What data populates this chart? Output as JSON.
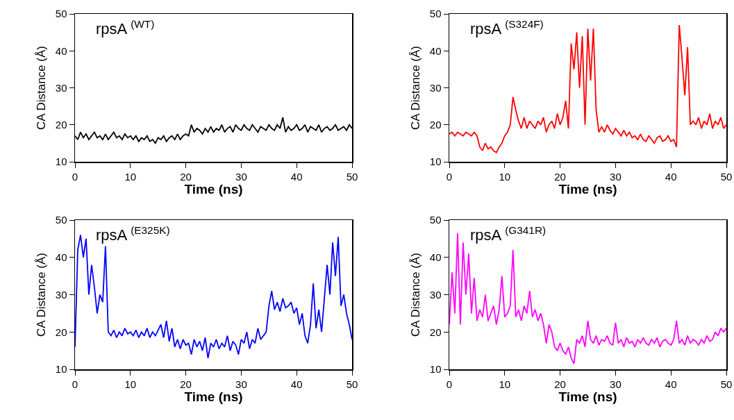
{
  "chart_data": [
    {
      "type": "line",
      "title": "rpsA $^{(WT)}$",
      "xlabel": "Time (ns)",
      "ylabel": "CA Distance (Å)",
      "xlim": [
        0,
        50
      ],
      "xticks": [
        0,
        10,
        20,
        30,
        40,
        50
      ],
      "ylim": [
        10,
        50
      ],
      "yticks": [
        10,
        20,
        30,
        40,
        50
      ],
      "grid": false,
      "x": [
        0,
        0.5,
        1,
        1.5,
        2,
        2.5,
        3,
        3.5,
        4,
        4.5,
        5,
        5.5,
        6,
        6.5,
        7,
        7.5,
        8,
        8.5,
        9,
        9.5,
        10,
        10.5,
        11,
        11.5,
        12,
        12.5,
        13,
        13.5,
        14,
        14.5,
        15,
        15.5,
        16,
        16.5,
        17,
        17.5,
        18,
        18.5,
        19,
        19.5,
        20,
        20.5,
        21,
        21.5,
        22,
        22.5,
        23,
        23.5,
        24,
        24.5,
        25,
        25.5,
        26,
        26.5,
        27,
        27.5,
        28,
        28.5,
        29,
        29.5,
        30,
        30.5,
        31,
        31.5,
        32,
        32.5,
        33,
        33.5,
        34,
        34.5,
        35,
        35.5,
        36,
        36.5,
        37,
        37.5,
        38,
        38.5,
        39,
        39.5,
        40,
        40.5,
        41,
        41.5,
        42,
        42.5,
        43,
        43.5,
        44,
        44.5,
        45,
        45.5,
        46,
        46.5,
        47,
        47.5,
        48,
        48.5,
        49,
        49.5,
        50
      ],
      "series": [
        {
          "color": "#000000",
          "values": [
            17,
            16,
            18,
            16.5,
            17.5,
            16,
            17,
            18,
            16.5,
            17,
            16,
            17.5,
            16,
            17,
            18,
            16.5,
            17,
            16,
            17.5,
            16.5,
            17,
            16,
            17,
            15.5,
            16.5,
            16,
            17,
            15.5,
            16,
            15,
            16.5,
            16,
            17,
            15.5,
            16.5,
            17,
            16,
            17.5,
            16,
            17,
            17.5,
            17,
            20,
            18,
            19,
            18.5,
            17.5,
            19,
            18,
            19.5,
            18,
            19,
            18.5,
            20,
            18,
            19,
            19.5,
            18,
            20,
            19,
            18.5,
            20,
            19,
            18.5,
            20,
            19,
            18,
            19.5,
            19,
            18.5,
            20,
            19,
            18.5,
            20,
            19,
            22,
            18,
            19.5,
            18.5,
            19,
            20,
            18.5,
            19,
            20,
            18,
            19.5,
            19,
            18.5,
            20,
            18,
            19,
            19.5,
            18.5,
            19,
            20,
            18.5,
            19,
            19.5,
            18.5,
            20,
            19
          ]
        }
      ]
    },
    {
      "type": "line",
      "title": "rpsA $^{(S324F)}$",
      "xlabel": "Time (ns)",
      "ylabel": "CA Distance (Å)",
      "xlim": [
        0,
        50
      ],
      "xticks": [
        0,
        10,
        20,
        30,
        40,
        50
      ],
      "ylim": [
        10,
        50
      ],
      "yticks": [
        10,
        20,
        30,
        40,
        50
      ],
      "grid": false,
      "x": [
        0,
        0.5,
        1,
        1.5,
        2,
        2.5,
        3,
        3.5,
        4,
        4.5,
        5,
        5.5,
        6,
        6.5,
        7,
        7.5,
        8,
        8.5,
        9,
        9.5,
        10,
        10.5,
        11,
        11.5,
        12,
        12.5,
        13,
        13.5,
        14,
        14.5,
        15,
        15.5,
        16,
        16.5,
        17,
        17.5,
        18,
        18.5,
        19,
        19.5,
        20,
        20.5,
        21,
        21.5,
        22,
        22.5,
        23,
        23.5,
        24,
        24.5,
        25,
        25.5,
        26,
        26.5,
        27,
        27.5,
        28,
        28.5,
        29,
        29.5,
        30,
        30.5,
        31,
        31.5,
        32,
        32.5,
        33,
        33.5,
        34,
        34.5,
        35,
        35.5,
        36,
        36.5,
        37,
        37.5,
        38,
        38.5,
        39,
        39.5,
        40,
        40.5,
        41,
        41.5,
        42,
        42.5,
        43,
        43.5,
        44,
        44.5,
        45,
        45.5,
        46,
        46.5,
        47,
        47.5,
        48,
        48.5,
        49,
        49.5,
        50
      ],
      "series": [
        {
          "color": "#ff0000",
          "values": [
            17.5,
            18,
            17,
            18,
            17.5,
            17,
            18,
            17.5,
            17,
            18,
            17,
            14,
            13,
            15,
            13.5,
            14,
            13,
            12.5,
            14,
            15,
            17,
            18,
            20,
            27.5,
            24,
            21,
            19,
            22,
            19,
            21,
            20,
            19,
            21,
            20,
            22,
            18,
            20,
            21,
            19,
            23,
            20,
            22,
            26.5,
            19,
            42,
            35,
            45,
            30,
            44,
            20,
            46,
            32,
            46,
            24,
            18,
            19.5,
            18,
            20,
            18.5,
            17.5,
            19,
            18,
            17,
            18.5,
            17,
            18,
            16.5,
            17,
            16,
            17.5,
            16,
            15.5,
            17,
            16,
            15,
            16.5,
            17,
            15.5,
            16,
            17,
            15.5,
            16,
            14,
            47,
            38,
            28,
            41,
            20,
            21,
            20,
            22,
            19,
            21,
            20,
            23,
            19,
            21,
            20,
            22,
            19,
            20
          ]
        }
      ]
    },
    {
      "type": "line",
      "title": "rpsA $^{(E325K)}$",
      "xlabel": "Time (ns)",
      "ylabel": "CA Distance (Å)",
      "xlim": [
        0,
        50
      ],
      "xticks": [
        0,
        10,
        20,
        30,
        40,
        50
      ],
      "ylim": [
        10,
        50
      ],
      "yticks": [
        10,
        20,
        30,
        40,
        50
      ],
      "grid": false,
      "x": [
        0,
        0.5,
        1,
        1.5,
        2,
        2.5,
        3,
        3.5,
        4,
        4.5,
        5,
        5.5,
        6,
        6.5,
        7,
        7.5,
        8,
        8.5,
        9,
        9.5,
        10,
        10.5,
        11,
        11.5,
        12,
        12.5,
        13,
        13.5,
        14,
        14.5,
        15,
        15.5,
        16,
        16.5,
        17,
        17.5,
        18,
        18.5,
        19,
        19.5,
        20,
        20.5,
        21,
        21.5,
        22,
        22.5,
        23,
        23.5,
        24,
        24.5,
        25,
        25.5,
        26,
        26.5,
        27,
        27.5,
        28,
        28.5,
        29,
        29.5,
        30,
        30.5,
        31,
        31.5,
        32,
        32.5,
        33,
        33.5,
        34,
        34.5,
        35,
        35.5,
        36,
        36.5,
        37,
        37.5,
        38,
        38.5,
        39,
        39.5,
        40,
        40.5,
        41,
        41.5,
        42,
        42.5,
        43,
        43.5,
        44,
        44.5,
        45,
        45.5,
        46,
        46.5,
        47,
        47.5,
        48,
        48.5,
        49,
        49.5,
        50
      ],
      "series": [
        {
          "color": "#0000ff",
          "values": [
            16,
            42,
            46,
            40,
            45,
            30,
            38,
            32,
            25,
            30,
            28,
            43,
            20,
            19,
            20.5,
            18.5,
            20,
            19,
            21,
            19.5,
            20,
            19,
            20.5,
            18.5,
            20,
            19,
            21,
            18.5,
            20,
            19,
            20.5,
            22,
            18.5,
            23,
            17.5,
            21,
            16,
            18,
            15.5,
            18,
            16.5,
            17,
            14,
            18,
            16,
            17.5,
            15,
            18.5,
            13,
            17,
            16,
            18,
            15.5,
            17,
            16,
            19,
            15,
            17.5,
            16.5,
            14,
            18,
            17,
            20,
            15.5,
            18,
            17,
            21,
            18,
            19,
            20,
            27,
            31,
            26,
            28,
            25.5,
            29,
            26.5,
            27,
            28,
            25,
            26.5,
            22,
            25,
            19,
            17,
            22,
            33,
            21,
            26,
            20,
            29,
            38,
            30,
            44,
            35,
            45.5,
            27,
            30,
            25,
            22,
            18
          ]
        }
      ]
    },
    {
      "type": "line",
      "title": "rpsA $^{(G341R)}$",
      "xlabel": "Time (ns)",
      "ylabel": "CA Distance (Å)",
      "xlim": [
        0,
        50
      ],
      "xticks": [
        0,
        10,
        20,
        30,
        40,
        50
      ],
      "ylim": [
        10,
        50
      ],
      "yticks": [
        10,
        20,
        30,
        40,
        50
      ],
      "grid": false,
      "x": [
        0,
        0.5,
        1,
        1.5,
        2,
        2.5,
        3,
        3.5,
        4,
        4.5,
        5,
        5.5,
        6,
        6.5,
        7,
        7.5,
        8,
        8.5,
        9,
        9.5,
        10,
        10.5,
        11,
        11.5,
        12,
        12.5,
        13,
        13.5,
        14,
        14.5,
        15,
        15.5,
        16,
        16.5,
        17,
        17.5,
        18,
        18.5,
        19,
        19.5,
        20,
        20.5,
        21,
        21.5,
        22,
        22.5,
        23,
        23.5,
        24,
        24.5,
        25,
        25.5,
        26,
        26.5,
        27,
        27.5,
        28,
        28.5,
        29,
        29.5,
        30,
        30.5,
        31,
        31.5,
        32,
        32.5,
        33,
        33.5,
        34,
        34.5,
        35,
        35.5,
        36,
        36.5,
        37,
        37.5,
        38,
        38.5,
        39,
        39.5,
        40,
        40.5,
        41,
        41.5,
        42,
        42.5,
        43,
        43.5,
        44,
        44.5,
        45,
        45.5,
        46,
        46.5,
        47,
        47.5,
        48,
        48.5,
        49,
        49.5,
        50
      ],
      "series": [
        {
          "color": "#ff00ff",
          "values": [
            22,
            36,
            25,
            46.5,
            22,
            44,
            30,
            41,
            25,
            34.5,
            23,
            26,
            24,
            30,
            23,
            25,
            27,
            22,
            26,
            35,
            24,
            25,
            27,
            42,
            24,
            26,
            23,
            27,
            25,
            31,
            24,
            26,
            23,
            25,
            22,
            17,
            22,
            20,
            16,
            15,
            17,
            15,
            14,
            16,
            13,
            11.5,
            18,
            17,
            19,
            16,
            23,
            18,
            17,
            19,
            16.5,
            18,
            17.5,
            19,
            17,
            16.5,
            22.5,
            17,
            18,
            16,
            18.5,
            17,
            17.5,
            16,
            18,
            17,
            18.5,
            17,
            16.5,
            18,
            17,
            18.5,
            16,
            17.5,
            18,
            17,
            16.5,
            18,
            23,
            17,
            18,
            16.5,
            19,
            17,
            18,
            17.5,
            16.5,
            18,
            17,
            19,
            17.5,
            18,
            20,
            19,
            21,
            20,
            21
          ]
        }
      ]
    }
  ]
}
